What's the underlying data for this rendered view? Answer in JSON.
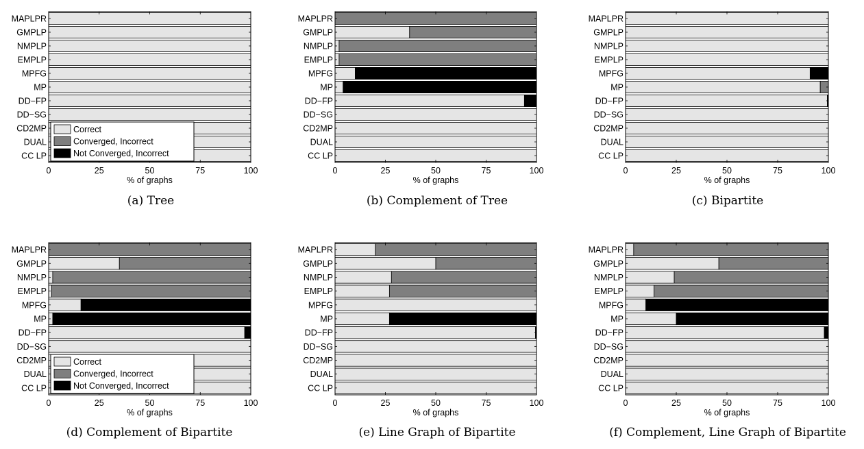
{
  "colors": {
    "correct": "#e5e5e5",
    "converged_incorrect": "#7f7f7f",
    "not_converged_incorrect": "#000000"
  },
  "legend": [
    "Correct",
    "Converged, Incorrect",
    "Not Converged, Incorrect"
  ],
  "chart_data": [
    {
      "type": "bar",
      "orientation": "horizontal",
      "stacked": true,
      "caption": "(a) Tree",
      "xlabel": "% of graphs",
      "xlim": [
        0,
        100
      ],
      "xticks": [
        0,
        25,
        50,
        75,
        100
      ],
      "categories": [
        "MAPLPR",
        "GMPLP",
        "NMPLP",
        "EMPLP",
        "MPFG",
        "MP",
        "DD−FP",
        "DD−SG",
        "CD2MP",
        "DUAL",
        "CC LP"
      ],
      "series": [
        {
          "name": "Correct",
          "values": [
            100,
            100,
            100,
            100,
            100,
            100,
            100,
            100,
            100,
            100,
            100
          ]
        },
        {
          "name": "Converged, Incorrect",
          "values": [
            0,
            0,
            0,
            0,
            0,
            0,
            0,
            0,
            0,
            0,
            0
          ]
        },
        {
          "name": "Not Converged, Incorrect",
          "values": [
            0,
            0,
            0,
            0,
            0,
            0,
            0,
            0,
            0,
            0,
            0
          ]
        }
      ],
      "legend_shown": true,
      "legend_position": "bottom-left"
    },
    {
      "type": "bar",
      "orientation": "horizontal",
      "stacked": true,
      "caption": "(b) Complement of Tree",
      "xlabel": "% of graphs",
      "xlim": [
        0,
        100
      ],
      "xticks": [
        0,
        25,
        50,
        75,
        100
      ],
      "categories": [
        "MAPLPR",
        "GMPLP",
        "NMPLP",
        "EMPLP",
        "MPFG",
        "MP",
        "DD−FP",
        "DD−SG",
        "CD2MP",
        "DUAL",
        "CC LP"
      ],
      "series": [
        {
          "name": "Correct",
          "values": [
            0,
            37,
            2,
            2,
            10,
            4,
            94,
            100,
            100,
            100,
            100
          ]
        },
        {
          "name": "Converged, Incorrect",
          "values": [
            100,
            63,
            98,
            98,
            0,
            0,
            0,
            0,
            0,
            0,
            0
          ]
        },
        {
          "name": "Not Converged, Incorrect",
          "values": [
            0,
            0,
            0,
            0,
            90,
            96,
            6,
            0,
            0,
            0,
            0
          ]
        }
      ],
      "legend_shown": false
    },
    {
      "type": "bar",
      "orientation": "horizontal",
      "stacked": true,
      "caption": "(c) Bipartite",
      "xlabel": "% of graphs",
      "xlim": [
        0,
        100
      ],
      "xticks": [
        0,
        25,
        50,
        75,
        100
      ],
      "categories": [
        "MAPLPR",
        "GMPLP",
        "NMPLP",
        "EMPLP",
        "MPFG",
        "MP",
        "DD−FP",
        "DD−SG",
        "CD2MP",
        "DUAL",
        "CC LP"
      ],
      "series": [
        {
          "name": "Correct",
          "values": [
            100,
            100,
            100,
            100,
            91,
            96,
            99.5,
            100,
            100,
            100,
            100
          ]
        },
        {
          "name": "Converged, Incorrect",
          "values": [
            0,
            0,
            0,
            0,
            0,
            4,
            0,
            0,
            0,
            0,
            0
          ]
        },
        {
          "name": "Not Converged, Incorrect",
          "values": [
            0,
            0,
            0,
            0,
            9,
            0,
            0.5,
            0,
            0,
            0,
            0
          ]
        }
      ],
      "legend_shown": false
    },
    {
      "type": "bar",
      "orientation": "horizontal",
      "stacked": true,
      "caption": "(d) Complement of Bipartite",
      "xlabel": "% of graphs",
      "xlim": [
        0,
        100
      ],
      "xticks": [
        0,
        25,
        50,
        75,
        100
      ],
      "categories": [
        "MAPLPR",
        "GMPLP",
        "NMPLP",
        "EMPLP",
        "MPFG",
        "MP",
        "DD−FP",
        "DD−SG",
        "CD2MP",
        "DUAL",
        "CC LP"
      ],
      "series": [
        {
          "name": "Correct",
          "values": [
            0,
            35,
            2,
            1.5,
            16,
            2,
            97,
            100,
            100,
            100,
            100
          ]
        },
        {
          "name": "Converged, Incorrect",
          "values": [
            100,
            65,
            98,
            98.5,
            0,
            0,
            0,
            0,
            0,
            0,
            0
          ]
        },
        {
          "name": "Not Converged, Incorrect",
          "values": [
            0,
            0,
            0,
            0,
            84,
            98,
            3,
            0,
            0,
            0,
            0
          ]
        }
      ],
      "legend_shown": true,
      "legend_position": "bottom-left"
    },
    {
      "type": "bar",
      "orientation": "horizontal",
      "stacked": true,
      "caption": "(e) Line Graph of Bipartite",
      "xlabel": "% of graphs",
      "xlim": [
        0,
        100
      ],
      "xticks": [
        0,
        25,
        50,
        75,
        100
      ],
      "categories": [
        "MAPLPR",
        "GMPLP",
        "NMPLP",
        "EMPLP",
        "MPFG",
        "MP",
        "DD−FP",
        "DD−SG",
        "CD2MP",
        "DUAL",
        "CC LP"
      ],
      "series": [
        {
          "name": "Correct",
          "values": [
            20,
            50,
            28,
            27,
            100,
            27,
            99.5,
            100,
            100,
            100,
            100
          ]
        },
        {
          "name": "Converged, Incorrect",
          "values": [
            80,
            50,
            72,
            73,
            0,
            0,
            0,
            0,
            0,
            0,
            0
          ]
        },
        {
          "name": "Not Converged, Incorrect",
          "values": [
            0,
            0,
            0,
            0,
            0,
            73,
            0.5,
            0,
            0,
            0,
            0
          ]
        }
      ],
      "legend_shown": false
    },
    {
      "type": "bar",
      "orientation": "horizontal",
      "stacked": true,
      "caption": "(f) Complement, Line Graph of Bipartite",
      "xlabel": "% of graphs",
      "xlim": [
        0,
        100
      ],
      "xticks": [
        0,
        25,
        50,
        75,
        100
      ],
      "categories": [
        "MAPLPR",
        "GMPLP",
        "NMPLP",
        "EMPLP",
        "MPFG",
        "MP",
        "DD−FP",
        "DD−SG",
        "CD2MP",
        "DUAL",
        "CC LP"
      ],
      "series": [
        {
          "name": "Correct",
          "values": [
            4,
            46,
            24,
            14,
            10,
            25,
            98,
            100,
            100,
            100,
            100
          ]
        },
        {
          "name": "Converged, Incorrect",
          "values": [
            96,
            54,
            76,
            86,
            0,
            0,
            0,
            0,
            0,
            0,
            0
          ]
        },
        {
          "name": "Not Converged, Incorrect",
          "values": [
            0,
            0,
            0,
            0,
            90,
            75,
            2,
            0,
            0,
            0,
            0
          ]
        }
      ],
      "legend_shown": false
    }
  ]
}
